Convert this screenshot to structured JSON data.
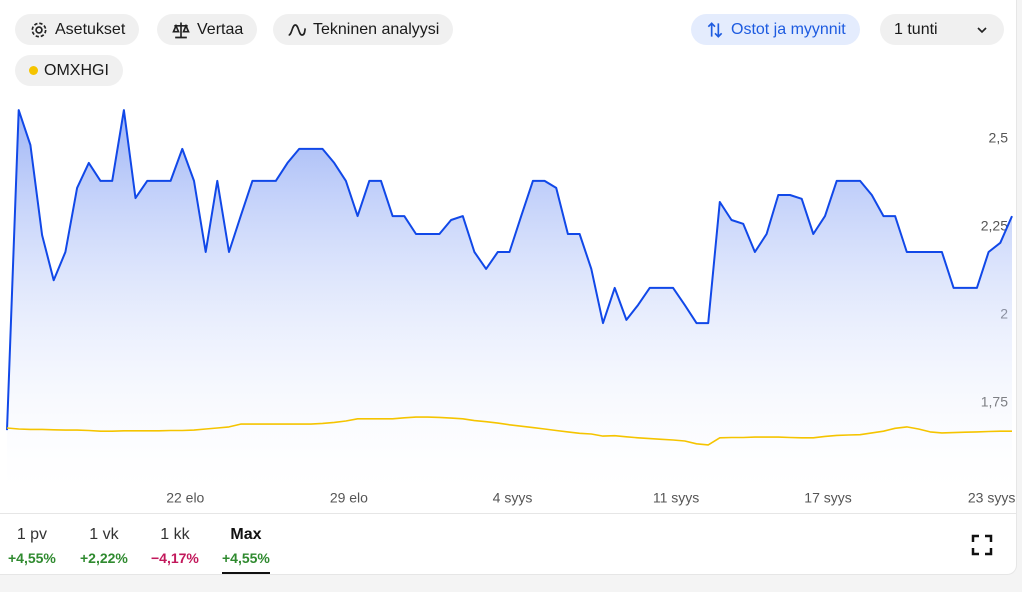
{
  "toolbar": {
    "settings": "Asetukset",
    "compare": "Vertaa",
    "technical": "Tekninen analyysi",
    "trades": "Ostot ja myynnit",
    "interval": "1 tunti"
  },
  "chart_data": {
    "type": "line",
    "categories": [
      null,
      null,
      null,
      null,
      null,
      null,
      null,
      null,
      null,
      null,
      null,
      null,
      null,
      null,
      null,
      "22 elo",
      null,
      null,
      null,
      null,
      null,
      null,
      null,
      null,
      null,
      null,
      null,
      null,
      null,
      "29 elo",
      null,
      null,
      null,
      null,
      null,
      null,
      null,
      null,
      null,
      null,
      null,
      null,
      null,
      "4 syys",
      null,
      null,
      null,
      null,
      null,
      null,
      null,
      null,
      null,
      null,
      null,
      null,
      null,
      "11 syys",
      null,
      null,
      null,
      null,
      null,
      null,
      null,
      null,
      null,
      null,
      null,
      null,
      "17 syys",
      null,
      null,
      null,
      null,
      null,
      null,
      null,
      null,
      null,
      null,
      null,
      null,
      null,
      "23 syys",
      null,
      null
    ],
    "series": [
      {
        "color": "#1148e8",
        "values": [
          1.673,
          2.582,
          2.483,
          2.227,
          2.099,
          2.179,
          2.361,
          2.432,
          2.381,
          2.381,
          2.582,
          2.332,
          2.381,
          2.381,
          2.381,
          2.472,
          2.381,
          2.179,
          2.381,
          2.179,
          2.281,
          2.381,
          2.381,
          2.381,
          2.432,
          2.472,
          2.472,
          2.472,
          2.432,
          2.381,
          2.281,
          2.381,
          2.381,
          2.281,
          2.281,
          2.23,
          2.23,
          2.23,
          2.27,
          2.281,
          2.179,
          2.131,
          2.179,
          2.179,
          2.281,
          2.381,
          2.381,
          2.361,
          2.23,
          2.23,
          2.131,
          1.977,
          2.077,
          1.986,
          2.028,
          2.077,
          2.077,
          2.077,
          2.028,
          1.977,
          1.977,
          2.321,
          2.27,
          2.259,
          2.179,
          2.23,
          2.341,
          2.341,
          2.33,
          2.23,
          2.281,
          2.381,
          2.381,
          2.381,
          2.341,
          2.281,
          2.281,
          2.179,
          2.179,
          2.179,
          2.179,
          2.077,
          2.077,
          2.077,
          2.179,
          2.205,
          2.281
        ]
      },
      {
        "name": "OMXHGI",
        "color": "#f5c400",
        "values": [
          1.679,
          1.676,
          1.675,
          1.675,
          1.674,
          1.673,
          1.673,
          1.672,
          1.67,
          1.67,
          1.671,
          1.671,
          1.671,
          1.671,
          1.672,
          1.672,
          1.673,
          1.676,
          1.679,
          1.682,
          1.69,
          1.69,
          1.69,
          1.69,
          1.69,
          1.69,
          1.69,
          1.692,
          1.695,
          1.699,
          1.705,
          1.705,
          1.705,
          1.705,
          1.708,
          1.71,
          1.71,
          1.709,
          1.707,
          1.705,
          1.7,
          1.697,
          1.693,
          1.688,
          1.684,
          1.68,
          1.676,
          1.672,
          1.668,
          1.664,
          1.662,
          1.656,
          1.657,
          1.654,
          1.651,
          1.649,
          1.647,
          1.645,
          1.642,
          1.634,
          1.631,
          1.651,
          1.652,
          1.652,
          1.653,
          1.653,
          1.653,
          1.652,
          1.651,
          1.651,
          1.655,
          1.658,
          1.659,
          1.66,
          1.665,
          1.67,
          1.678,
          1.682,
          1.676,
          1.668,
          1.665,
          1.666,
          1.667,
          1.668,
          1.669,
          1.67,
          1.67
        ]
      }
    ],
    "ylim": [
      1.5,
      2.625
    ],
    "yticks": [
      {
        "value": 1.75,
        "label": "1,75"
      },
      2,
      {
        "value": 2.25,
        "label": "2,25"
      },
      {
        "value": 2.5,
        "label": "2,5"
      }
    ],
    "grid": false
  },
  "periods": [
    {
      "label": "1 pv",
      "change": "+4,55%"
    },
    {
      "label": "1 vk",
      "change": "+2,22%"
    },
    {
      "label": "1 kk",
      "change": "−4,17%"
    },
    {
      "label": "Max",
      "change": "+4,55%"
    }
  ]
}
